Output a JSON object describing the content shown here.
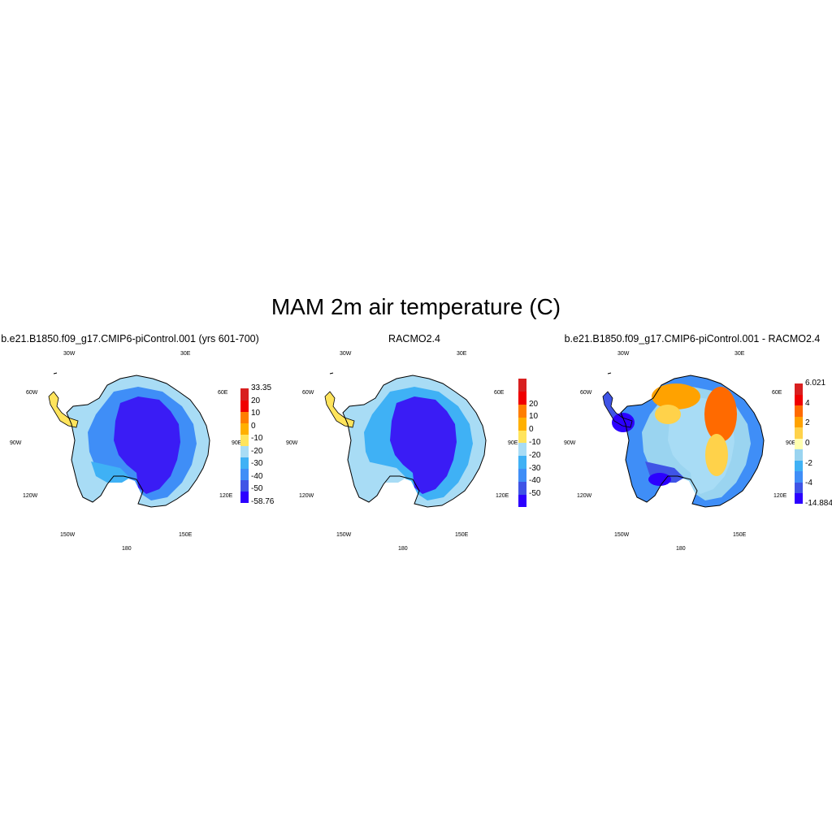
{
  "title": "MAM 2m air temperature (C)",
  "panels": [
    {
      "title": "b.e21.B1850.f09_g17.CMIP6-piControl.001 (yrs 601-700)",
      "colorbar": {
        "colors": [
          "#2c00ff",
          "#3f54e6",
          "#3f8ef7",
          "#3fb1f5",
          "#a8dcf5",
          "#ffe45c",
          "#ffb000",
          "#ff7e00",
          "#f00000",
          "#d82020"
        ],
        "labels": [
          "-58.76",
          "-50",
          "-40",
          "-30",
          "-20",
          "-10",
          "0",
          "10",
          "20",
          "33.35"
        ]
      }
    },
    {
      "title": "RACMO2.4",
      "colorbar": {
        "colors": [
          "#2c00ff",
          "#3f54e6",
          "#3f8ef7",
          "#3fb1f5",
          "#a8dcf5",
          "#ffe45c",
          "#ffb000",
          "#ff7e00",
          "#f00000",
          "#d82020"
        ],
        "labels": [
          "-50",
          "-40",
          "-30",
          "-20",
          "-10",
          "0",
          "10",
          "20"
        ]
      }
    },
    {
      "title": "b.e21.B1850.f09_g17.CMIP6-piControl.001 - RACMO2.4",
      "colorbar": {
        "colors": [
          "#2c00ff",
          "#3f54e6",
          "#3f8ef7",
          "#3fb1f5",
          "#9ad4f0",
          "#ffffb0",
          "#ffd24a",
          "#ffa200",
          "#ff6a00",
          "#f00000",
          "#d82020"
        ],
        "labels": [
          "-14.884",
          "-4",
          "-2",
          "0",
          "2",
          "4",
          "6.021"
        ]
      }
    }
  ],
  "lon_labels": [
    "30W",
    "30E",
    "60W",
    "60E",
    "90W",
    "90E",
    "120W",
    "120E",
    "150W",
    "150E",
    "180"
  ]
}
